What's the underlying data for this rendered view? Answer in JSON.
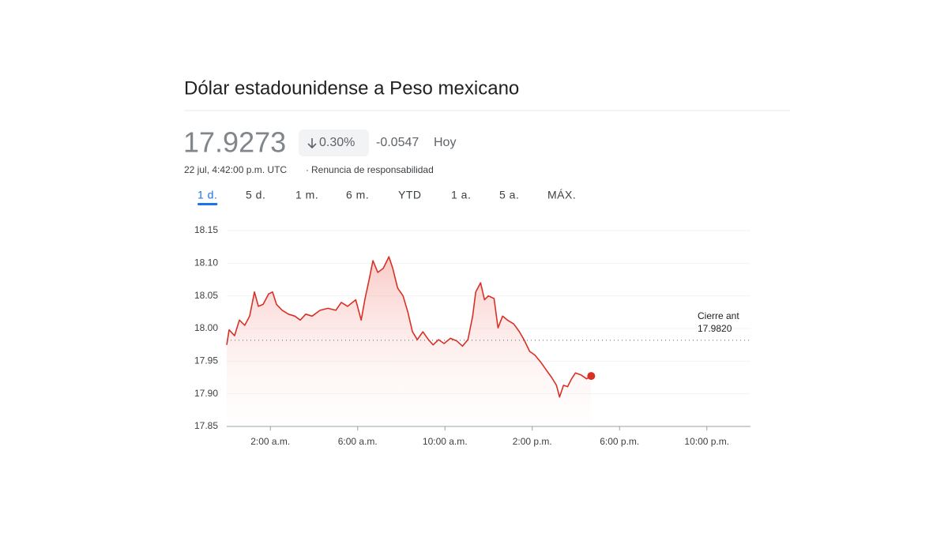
{
  "header": {
    "title": "Dólar estadounidense a Peso mexicano",
    "price": "17.9273",
    "change_percent": "0.30%",
    "change": "-0.0547",
    "period": "Hoy",
    "timestamp": "22 jul, 4:42:00 p.m. UTC",
    "separator": "·",
    "disclaimer": "Renuncia de responsabilidad"
  },
  "tabs": {
    "items": [
      "1 d.",
      "5 d.",
      "1 m.",
      "6 m.",
      "YTD",
      "1 a.",
      "5 a.",
      "MÁX."
    ],
    "selected": 0
  },
  "chart_data": {
    "type": "line",
    "color": "#d93025",
    "x": [
      0,
      0.11,
      0.36,
      0.58,
      0.83,
      1.05,
      1.27,
      1.45,
      1.67,
      1.92,
      2.1,
      2.28,
      2.54,
      2.83,
      3.12,
      3.37,
      3.62,
      3.91,
      4.28,
      4.64,
      5.0,
      5.25,
      5.54,
      5.91,
      6.16,
      6.34,
      6.52,
      6.7,
      6.92,
      7.17,
      7.43,
      7.61,
      7.83,
      8.08,
      8.3,
      8.51,
      8.73,
      8.99,
      9.24,
      9.46,
      9.71,
      9.96,
      10.25,
      10.54,
      10.8,
      11.05,
      11.27,
      11.41,
      11.63,
      11.81,
      11.99,
      12.25,
      12.43,
      12.64,
      12.86,
      13.15,
      13.41,
      13.62,
      13.88,
      14.13,
      14.42,
      14.67,
      14.89,
      15.11,
      15.25,
      15.43,
      15.62,
      15.8,
      15.98,
      16.23,
      16.49,
      16.7
    ],
    "values": [
      17.975,
      17.998,
      17.989,
      18.013,
      18.005,
      18.019,
      18.056,
      18.034,
      18.037,
      18.053,
      18.056,
      18.037,
      18.028,
      18.022,
      18.019,
      18.013,
      18.022,
      18.019,
      18.028,
      18.031,
      18.028,
      18.04,
      18.034,
      18.044,
      18.013,
      18.046,
      18.074,
      18.104,
      18.086,
      18.092,
      18.11,
      18.092,
      18.062,
      18.05,
      18.025,
      17.995,
      17.983,
      17.995,
      17.983,
      17.975,
      17.983,
      17.977,
      17.985,
      17.981,
      17.973,
      17.983,
      18.019,
      18.056,
      18.07,
      18.044,
      18.05,
      18.046,
      18.001,
      18.019,
      18.013,
      18.007,
      17.995,
      17.983,
      17.965,
      17.959,
      17.947,
      17.935,
      17.925,
      17.913,
      17.895,
      17.913,
      17.911,
      17.923,
      17.932,
      17.929,
      17.923,
      17.9273
    ],
    "xlim": [
      0,
      24
    ],
    "ylim": [
      17.85,
      18.15
    ],
    "xticks": [
      {
        "value": 2,
        "label": "2:00 a.m."
      },
      {
        "value": 6,
        "label": "6:00 a.m."
      },
      {
        "value": 10,
        "label": "10:00 a.m."
      },
      {
        "value": 14,
        "label": "2:00 p.m."
      },
      {
        "value": 18,
        "label": "6:00 p.m."
      },
      {
        "value": 22,
        "label": "10:00 p.m."
      }
    ],
    "yticks": [
      17.85,
      {
        "value": 17.9,
        "label": "17.90"
      },
      17.95,
      {
        "value": 18.0,
        "label": "18.00"
      },
      18.05,
      {
        "value": 18.1,
        "label": "18.10"
      },
      18.15
    ],
    "grid": true,
    "previous_close": {
      "name": "Cierre ant",
      "value": 17.982,
      "label": "17.9820"
    }
  }
}
